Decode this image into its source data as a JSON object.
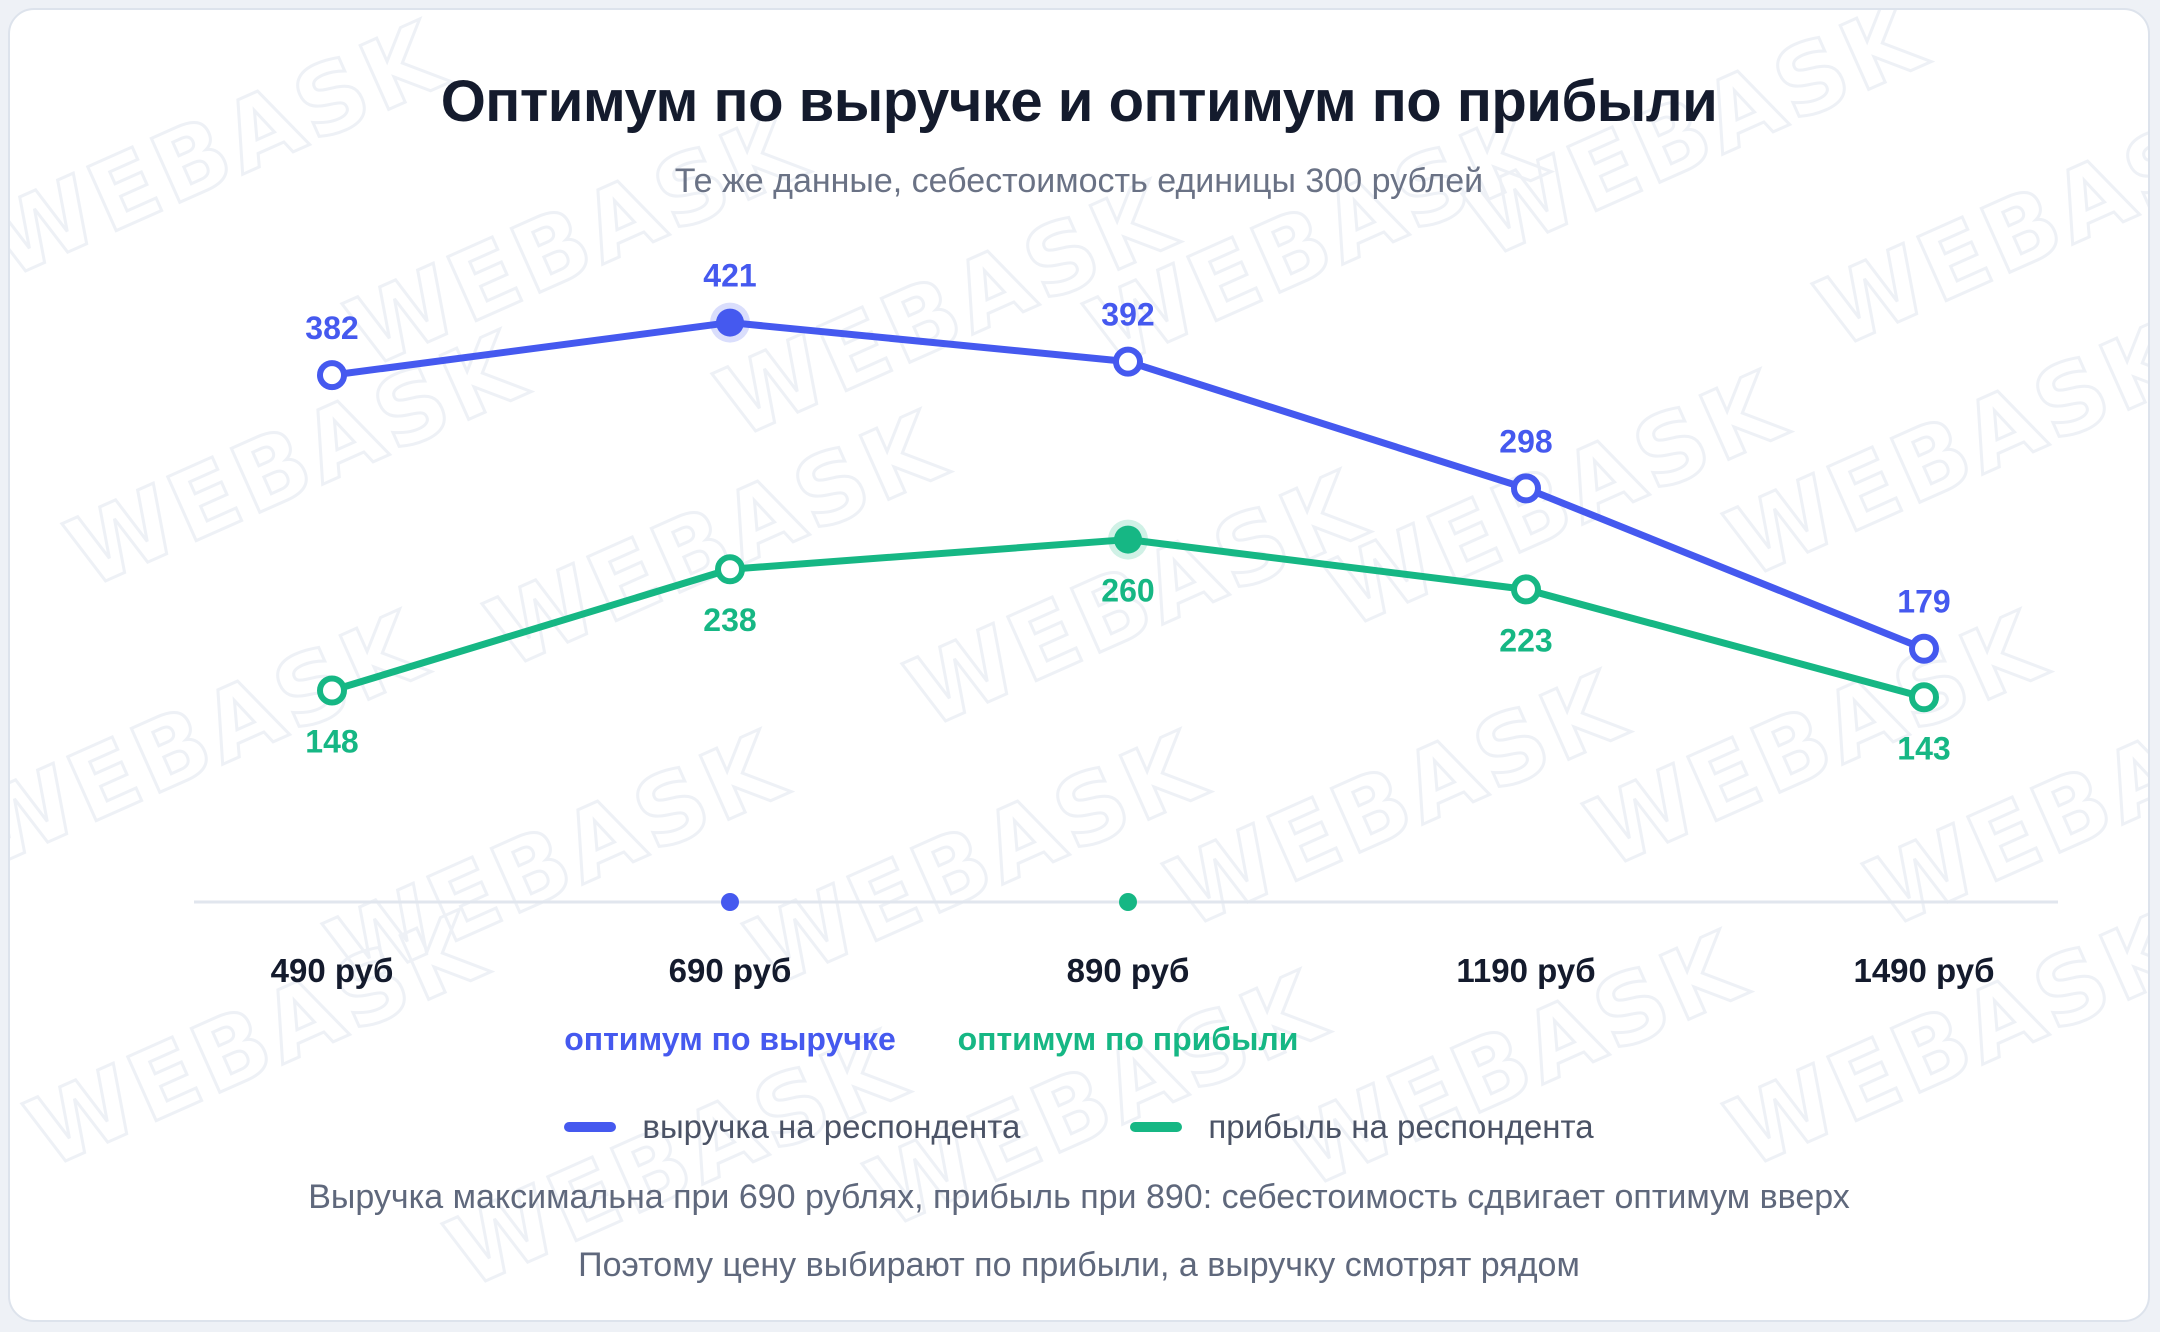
{
  "title": "Оптимум по выручке и оптимум по прибыли",
  "subtitle": "Те же данные, себестоимость единицы 300 рублей",
  "watermark": "WEBASK",
  "footnotes": [
    "Выручка максимальна при 690 рублях, прибыль при 890: себестоимость сдвигает оптимум вверх",
    "Поэтому цену выбирают по прибыли, а выручку смотрят рядом"
  ],
  "colors": {
    "revenue": "#4559ef",
    "profit": "#16b784",
    "axis": "#e1e6ee",
    "tick_text": "#141b2d"
  },
  "chart_data": {
    "type": "line",
    "title": "Оптимум по выручке и оптимум по прибыли",
    "subtitle": "Те же данные, себестоимость единицы 300 рублей",
    "categories": [
      "490 руб",
      "690 руб",
      "890 руб",
      "1190 руб",
      "1490 руб"
    ],
    "series": [
      {
        "name": "выручка на респондента",
        "values": [
          382,
          421,
          392,
          298,
          179
        ],
        "color": "#4559ef",
        "label_position": "above",
        "highlight_index": 1,
        "optimum_label": "оптимум по выручке"
      },
      {
        "name": "прибыль на респондента",
        "values": [
          148,
          238,
          260,
          223,
          143
        ],
        "color": "#16b784",
        "label_position": "below",
        "highlight_index": 2,
        "optimum_label": "оптимум по прибыли"
      }
    ],
    "ylim": [
      0,
      460
    ],
    "grid": false,
    "legend": "bottom-center"
  }
}
